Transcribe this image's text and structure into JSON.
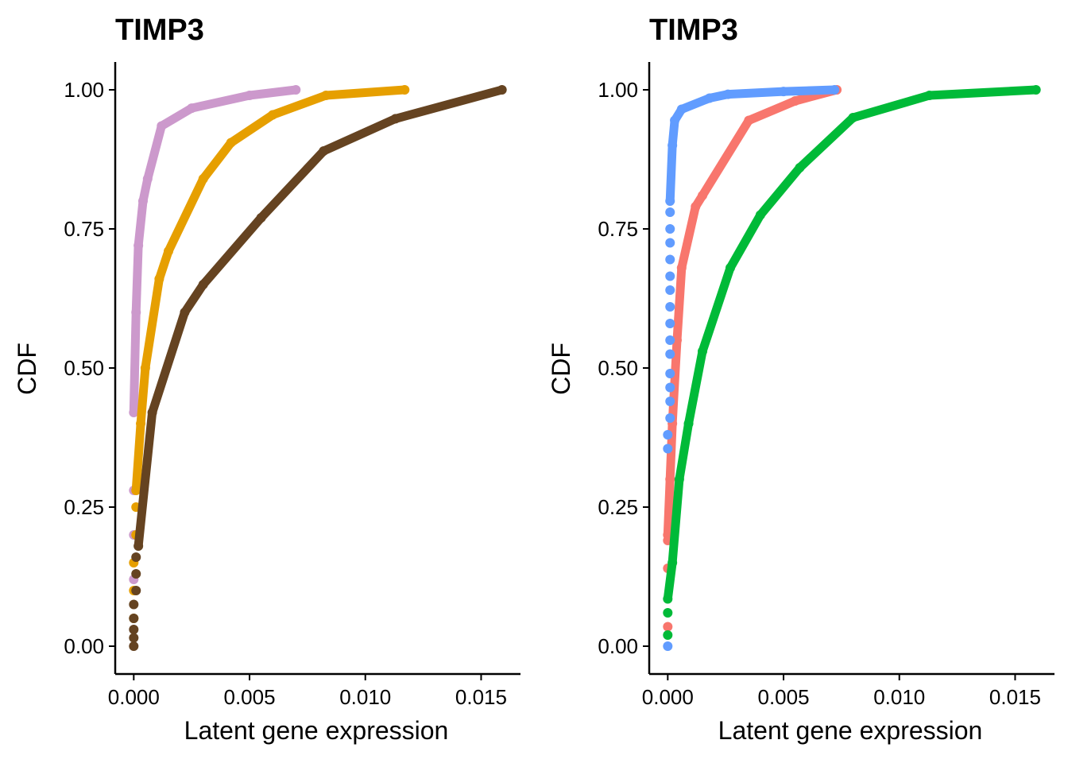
{
  "chart_data": [
    {
      "type": "line",
      "title": "TIMP3",
      "xlabel": "Latent gene expression",
      "ylabel": "CDF",
      "xlim": [
        -0.0008,
        0.0167
      ],
      "ylim": [
        -0.05,
        1.05
      ],
      "x_ticks": [
        "0.000",
        "0.005",
        "0.010",
        "0.015"
      ],
      "x_tick_values": [
        0,
        0.005,
        0.01,
        0.015
      ],
      "y_ticks": [
        "0.00",
        "0.25",
        "0.50",
        "0.75",
        "1.00"
      ],
      "y_tick_values": [
        0,
        0.25,
        0.5,
        0.75,
        1
      ],
      "grid": false,
      "legend": "none",
      "series": [
        {
          "color": "#CC99CC",
          "dots": [
            [
              0,
              0.12
            ],
            [
              0,
              0.2
            ],
            [
              0,
              0.28
            ]
          ],
          "points": [
            [
              0,
              0.42
            ],
            [
              0.0001,
              0.6
            ],
            [
              0.0002,
              0.72
            ],
            [
              0.0004,
              0.8
            ],
            [
              0.0006,
              0.84
            ],
            [
              0.0012,
              0.935
            ],
            [
              0.0025,
              0.967
            ],
            [
              0.005,
              0.99
            ],
            [
              0.007,
              1.0
            ]
          ]
        },
        {
          "color": "#E69F00",
          "dots": [
            [
              0,
              0.05
            ],
            [
              0,
              0.1
            ],
            [
              0,
              0.15
            ],
            [
              0.0001,
              0.2
            ],
            [
              0.0001,
              0.25
            ]
          ],
          "points": [
            [
              0.0001,
              0.28
            ],
            [
              0.0003,
              0.4
            ],
            [
              0.0005,
              0.5
            ],
            [
              0.0011,
              0.66
            ],
            [
              0.0015,
              0.71
            ],
            [
              0.003,
              0.84
            ],
            [
              0.0042,
              0.905
            ],
            [
              0.006,
              0.955
            ],
            [
              0.0083,
              0.99
            ],
            [
              0.0117,
              1.0
            ]
          ]
        },
        {
          "color": "#654321",
          "dots": [
            [
              0,
              0.0
            ],
            [
              0,
              0.015
            ],
            [
              0,
              0.03
            ],
            [
              0,
              0.05
            ],
            [
              0,
              0.075
            ],
            [
              0.0001,
              0.1
            ],
            [
              0.0001,
              0.13
            ],
            [
              0.0001,
              0.16
            ]
          ],
          "points": [
            [
              0.0002,
              0.18
            ],
            [
              0.0008,
              0.42
            ],
            [
              0.0022,
              0.6
            ],
            [
              0.003,
              0.65
            ],
            [
              0.0055,
              0.77
            ],
            [
              0.0082,
              0.89
            ],
            [
              0.0113,
              0.948
            ],
            [
              0.0159,
              1.0
            ]
          ]
        }
      ]
    },
    {
      "type": "line",
      "title": "TIMP3",
      "xlabel": "Latent gene expression",
      "ylabel": "CDF",
      "xlim": [
        -0.0008,
        0.0167
      ],
      "ylim": [
        -0.05,
        1.05
      ],
      "x_ticks": [
        "0.000",
        "0.005",
        "0.010",
        "0.015"
      ],
      "x_tick_values": [
        0,
        0.005,
        0.01,
        0.015
      ],
      "y_ticks": [
        "0.00",
        "0.25",
        "0.50",
        "0.75",
        "1.00"
      ],
      "y_tick_values": [
        0,
        0.25,
        0.5,
        0.75,
        1
      ],
      "grid": false,
      "legend": "none",
      "series": [
        {
          "color": "#F8766D",
          "dots": [
            [
              0,
              0.035
            ],
            [
              0,
              0.14
            ],
            [
              0,
              0.19
            ]
          ],
          "points": [
            [
              0,
              0.2
            ],
            [
              0.0001,
              0.3
            ],
            [
              0.0002,
              0.4
            ],
            [
              0.0004,
              0.55
            ],
            [
              0.0006,
              0.68
            ],
            [
              0.0012,
              0.79
            ],
            [
              0.0015,
              0.81
            ],
            [
              0.0035,
              0.945
            ],
            [
              0.0055,
              0.98
            ],
            [
              0.0073,
              1.0
            ]
          ]
        },
        {
          "color": "#00BA38",
          "dots": [
            [
              0,
              0.02
            ],
            [
              0,
              0.06
            ]
          ],
          "points": [
            [
              0,
              0.085
            ],
            [
              0.0002,
              0.15
            ],
            [
              0.0005,
              0.3
            ],
            [
              0.0009,
              0.4
            ],
            [
              0.0015,
              0.53
            ],
            [
              0.0027,
              0.68
            ],
            [
              0.004,
              0.775
            ],
            [
              0.0057,
              0.86
            ],
            [
              0.008,
              0.95
            ],
            [
              0.0113,
              0.99
            ],
            [
              0.0159,
              1.0
            ]
          ]
        },
        {
          "color": "#619CFF",
          "dots": [
            [
              0,
              0.0
            ],
            [
              0,
              0.355
            ],
            [
              0,
              0.38
            ],
            [
              0.0001,
              0.41
            ],
            [
              0.0001,
              0.44
            ],
            [
              0.0001,
              0.465
            ],
            [
              0.0001,
              0.49
            ],
            [
              0.0001,
              0.525
            ],
            [
              0.0001,
              0.55
            ],
            [
              0.0001,
              0.58
            ],
            [
              0.0001,
              0.61
            ],
            [
              0.0001,
              0.64
            ],
            [
              0.0001,
              0.665
            ],
            [
              0.0001,
              0.695
            ],
            [
              0.0001,
              0.725
            ],
            [
              0.0001,
              0.75
            ],
            [
              0.0001,
              0.78
            ]
          ],
          "points": [
            [
              0.0001,
              0.8
            ],
            [
              0.0002,
              0.9
            ],
            [
              0.0003,
              0.945
            ],
            [
              0.0006,
              0.965
            ],
            [
              0.0018,
              0.985
            ],
            [
              0.0026,
              0.992
            ],
            [
              0.005,
              0.997
            ],
            [
              0.0072,
              1.0
            ]
          ]
        }
      ]
    }
  ]
}
